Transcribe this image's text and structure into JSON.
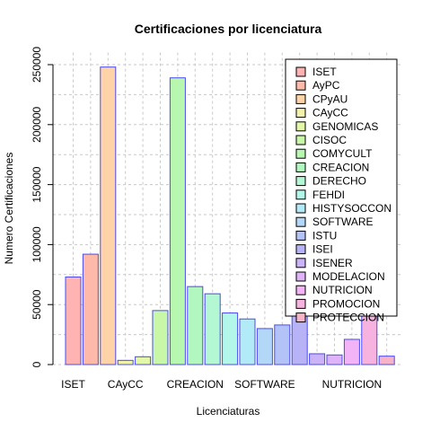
{
  "chart_data": {
    "type": "bar",
    "title": "Certificaciones por licenciatura",
    "xlabel": "Licenciaturas",
    "ylabel": "Numero Certificaciones",
    "ylim": [
      0,
      260000
    ],
    "yticks": [
      0,
      50000,
      100000,
      150000,
      200000,
      250000
    ],
    "grid": true,
    "legend_position": "top-right",
    "bar_border_color": "#4a4af0",
    "categories": [
      "ISET",
      "AyPC",
      "CPyAU",
      "CAyCC",
      "GENOMICAS",
      "CISOC",
      "COMYCULT",
      "CREACION",
      "DERECHO",
      "FEHDI",
      "HISTYSOCCON",
      "SOFTWARE",
      "ISTU",
      "ISEI",
      "ISENER",
      "MODELACION",
      "NUTRICION",
      "PROMOCION",
      "PROTECCION"
    ],
    "x_tick_labels": [
      {
        "index": 0,
        "label": "ISET"
      },
      {
        "index": 3,
        "label": "CAyCC"
      },
      {
        "index": 7,
        "label": "CREACION"
      },
      {
        "index": 11,
        "label": "SOFTWARE"
      },
      {
        "index": 16,
        "label": "NUTRICION"
      }
    ],
    "values": [
      73000,
      92000,
      248000,
      3500,
      6500,
      45000,
      239000,
      65000,
      59000,
      43000,
      38000,
      30000,
      33000,
      55000,
      9000,
      8000,
      21000,
      45000,
      7000
    ],
    "colors": [
      "#FFB3B3",
      "#FFB9A8",
      "#FFD3A8",
      "#F2F2A8",
      "#E3F7A8",
      "#C8F7A8",
      "#B8F7B0",
      "#B3F7C0",
      "#B3F7D3",
      "#B3F7EA",
      "#B3EAF7",
      "#B3D7F7",
      "#B3C3F7",
      "#B8B3F7",
      "#CBB3F7",
      "#DEB3F7",
      "#F2B3F7",
      "#F7B3E0",
      "#F7B3C8"
    ]
  }
}
